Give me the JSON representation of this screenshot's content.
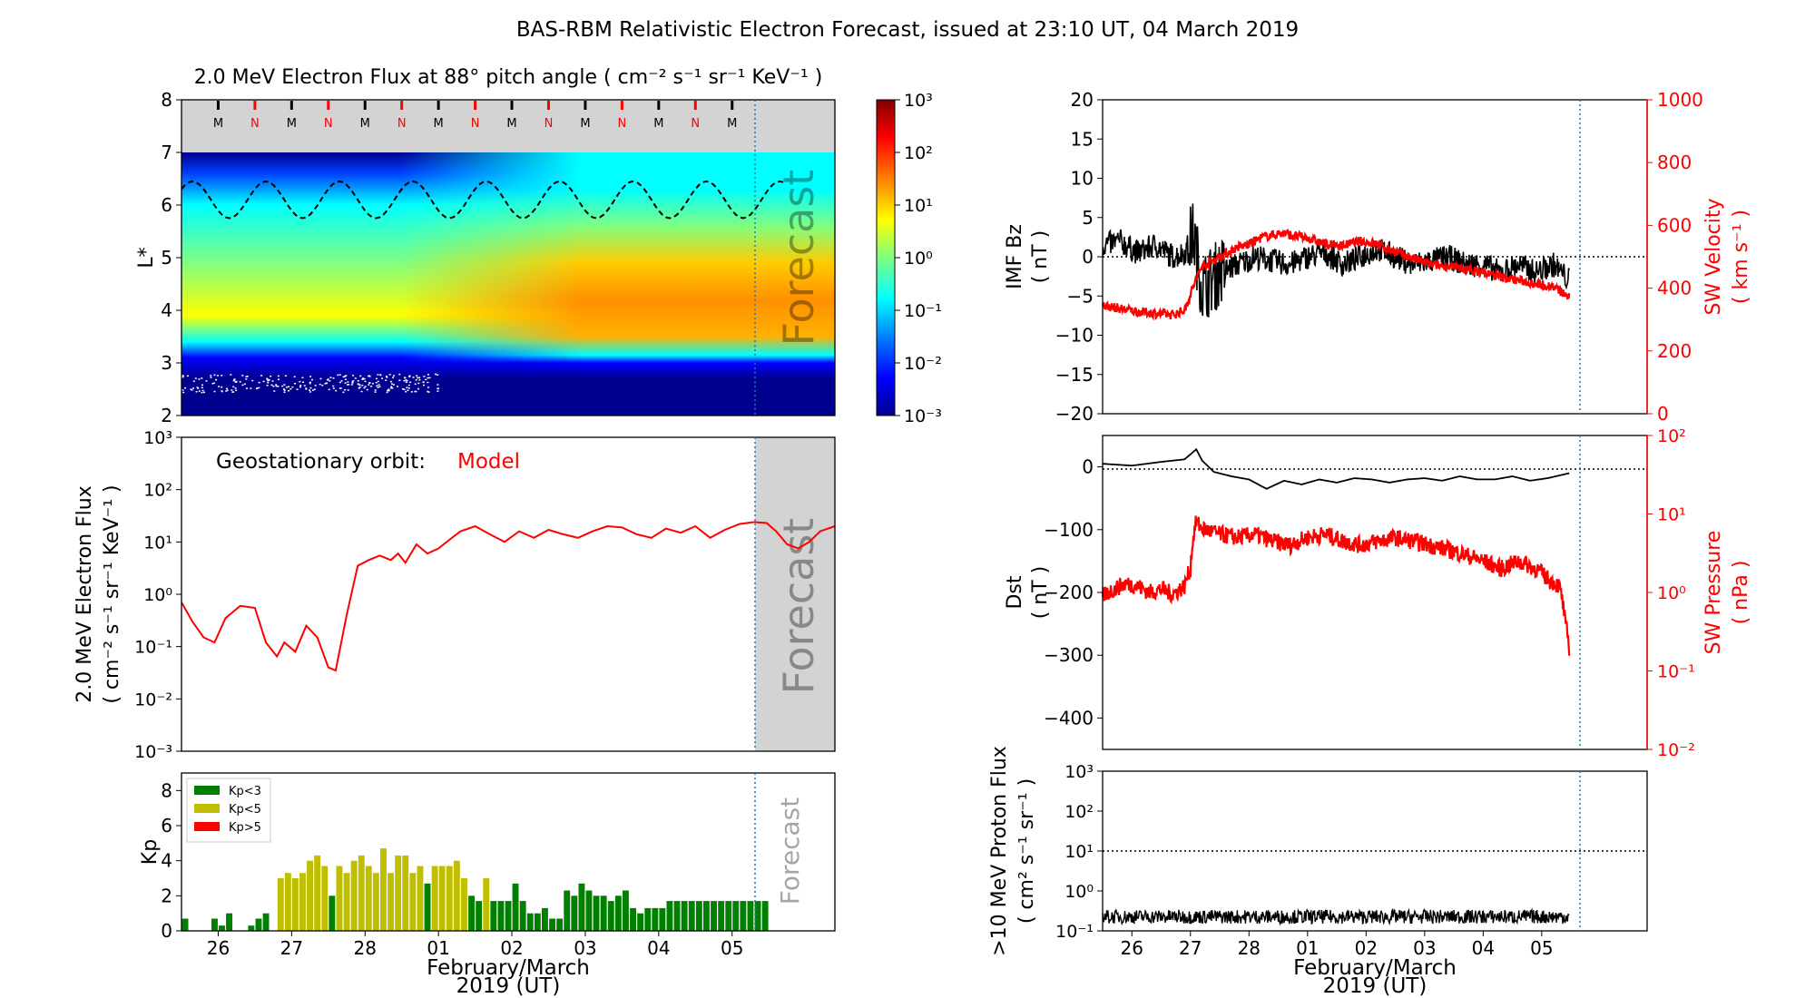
{
  "figure_title": "BAS-RBM Relativistic Electron Forecast, issued at 23:10 UT, 04 March 2019",
  "chart_data": [
    {
      "id": "flux_map",
      "type": "heatmap",
      "title": "2.0 MeV Electron Flux at 88° pitch angle ( cm⁻² s⁻¹ sr⁻¹ KeV⁻¹ )",
      "ylabel": "L*",
      "ylim": [
        2,
        8
      ],
      "y_ticks": [
        2,
        3,
        4,
        5,
        6,
        7,
        8
      ],
      "xlim_days": [
        -3.5,
        5.4
      ],
      "forecast_start_day": 4.47,
      "forecast_label": "Forecast",
      "colorbar": {
        "scale": "log",
        "range": [
          0.001,
          1000
        ],
        "tick_labels": [
          "10⁻³",
          "10⁻²",
          "10⁻¹",
          "10⁰",
          "10¹",
          "10²",
          "10³"
        ]
      },
      "mn_markers": [
        "M",
        "N",
        "M",
        "N",
        "M",
        "N",
        "M",
        "N",
        "M",
        "N",
        "M",
        "N",
        "M",
        "N",
        "M"
      ],
      "mn_colors": {
        "M": "#000000",
        "N": "#ff0000"
      },
      "magnetopause_dashed_L": {
        "mean": 6.1,
        "amplitude": 0.35,
        "period_days": 1
      }
    },
    {
      "id": "geo_flux",
      "type": "line",
      "annotation": "Geostationary orbit:",
      "annotation_series": "Model",
      "ylabel_lines": [
        "2.0 MeV Electron Flux",
        "( cm⁻² s⁻¹ sr⁻¹ KeV⁻¹ )"
      ],
      "yscale": "log",
      "ylim": [
        0.001,
        1000
      ],
      "y_tick_labels": [
        "10⁻³",
        "10⁻²",
        "10⁻¹",
        "10⁰",
        "10¹",
        "10²",
        "10³"
      ],
      "forecast_label": "Forecast",
      "series": [
        {
          "color": "#ff0000",
          "x_days": [
            -3.5,
            -3.35,
            -3.2,
            -3.05,
            -2.9,
            -2.7,
            -2.5,
            -2.35,
            -2.2,
            -2.1,
            -1.95,
            -1.8,
            -1.65,
            -1.5,
            -1.4,
            -1.25,
            -1.1,
            -0.95,
            -0.8,
            -0.65,
            -0.55,
            -0.45,
            -0.3,
            -0.15,
            0.0,
            0.15,
            0.3,
            0.5,
            0.7,
            0.9,
            1.1,
            1.3,
            1.5,
            1.7,
            1.9,
            2.1,
            2.3,
            2.5,
            2.7,
            2.9,
            3.1,
            3.3,
            3.5,
            3.7,
            3.9,
            4.1,
            4.3,
            4.47,
            4.6,
            4.75,
            4.9,
            5.05,
            5.2,
            5.4
          ],
          "values": [
            0.7,
            0.3,
            0.15,
            0.12,
            0.35,
            0.6,
            0.55,
            0.12,
            0.065,
            0.12,
            0.08,
            0.25,
            0.15,
            0.04,
            0.035,
            0.4,
            3.5,
            4.5,
            5.5,
            4.5,
            6.0,
            4.0,
            9.0,
            6.0,
            7.5,
            11.0,
            16.0,
            20.0,
            14.0,
            10.0,
            16.0,
            12.0,
            17.0,
            14.0,
            12.0,
            16.0,
            20.0,
            19.0,
            14.0,
            12.0,
            18.0,
            15.0,
            20.0,
            12.0,
            17.0,
            22.0,
            24.0,
            23.0,
            16.0,
            9.0,
            7.5,
            10.0,
            16.0,
            20.0
          ]
        }
      ]
    },
    {
      "id": "kp",
      "type": "bar",
      "ylabel": "Kp",
      "ylim": [
        0,
        9
      ],
      "y_ticks": [
        0,
        2,
        4,
        6,
        8
      ],
      "forecast_label": "Forecast",
      "legend": [
        {
          "label": "Kp<3",
          "color": "#008000"
        },
        {
          "label": "Kp<5",
          "color": "#bfbf00"
        },
        {
          "label": "Kp>5",
          "color": "#ff0000"
        }
      ],
      "bar_width_days": 0.1,
      "start_day": -3.5,
      "values": [
        0.7,
        0,
        0,
        0,
        0.7,
        0.3,
        1.0,
        0,
        0,
        0.3,
        0.7,
        1.0,
        0,
        3.0,
        3.3,
        3.0,
        3.3,
        4.0,
        4.3,
        3.7,
        2.0,
        3.7,
        3.3,
        4.0,
        4.3,
        3.7,
        3.3,
        4.7,
        3.3,
        4.3,
        4.3,
        3.3,
        3.7,
        2.7,
        3.7,
        3.7,
        3.7,
        4.0,
        3.0,
        2.0,
        1.7,
        3.0,
        1.7,
        1.7,
        1.7,
        2.7,
        1.7,
        1.0,
        1.0,
        1.3,
        0.7,
        0.7,
        2.3,
        2.0,
        2.7,
        2.3,
        2.0,
        2.0,
        1.7,
        2.0,
        2.3,
        1.3,
        1.0,
        1.3,
        1.3,
        1.3,
        1.7,
        1.7,
        1.7,
        1.7,
        1.7,
        1.7,
        1.7,
        1.7,
        1.7,
        1.7,
        1.7,
        1.7,
        1.7,
        1.7
      ]
    },
    {
      "id": "imf_sw",
      "type": "line",
      "ylabel_left": [
        "IMF Bz",
        "( nT )"
      ],
      "ylim_left": [
        -20,
        20
      ],
      "y_ticks_left": [
        -20,
        -15,
        -10,
        -5,
        0,
        5,
        10,
        15,
        20
      ],
      "ylabel_right": [
        "SW Velocity",
        "( km s⁻¹ )"
      ],
      "ylim_right": [
        0,
        1000
      ],
      "y_ticks_right": [
        0,
        200,
        400,
        600,
        800,
        1000
      ],
      "data_end_day": 4.47,
      "series": [
        {
          "color": "#000000",
          "x_days": [
            -3.5,
            -3.2,
            -2.9,
            -2.6,
            -2.3,
            -2.1,
            -1.95,
            -1.8,
            -1.5,
            -1.2,
            -0.9,
            -0.6,
            -0.3,
            0.0,
            0.3,
            0.6,
            0.9,
            1.2,
            1.5,
            1.8,
            2.1,
            2.4,
            2.7,
            3.0,
            3.3,
            3.6,
            3.9,
            4.2,
            4.47
          ],
          "values": [
            1.5,
            2.0,
            0.5,
            1.5,
            0.0,
            0.5,
            3.0,
            -4.0,
            -2.0,
            -1.0,
            0.0,
            -0.5,
            -1.0,
            0.0,
            0.5,
            -1.0,
            0.0,
            1.0,
            0.0,
            -1.0,
            -0.5,
            0.0,
            -1.0,
            -1.0,
            -2.0,
            -1.0,
            -2.0,
            -1.0,
            -3.0
          ]
        },
        {
          "color": "#ff0000",
          "x_days": [
            -3.5,
            -3.2,
            -2.9,
            -2.6,
            -2.3,
            -2.1,
            -2.0,
            -1.9,
            -1.8,
            -1.6,
            -1.4,
            -1.2,
            -1.0,
            -0.8,
            -0.6,
            -0.4,
            -0.2,
            0.0,
            0.3,
            0.6,
            0.9,
            1.2,
            1.5,
            1.8,
            2.1,
            2.4,
            2.7,
            3.0,
            3.3,
            3.6,
            3.9,
            4.2,
            4.47
          ],
          "values": [
            345,
            335,
            325,
            320,
            315,
            330,
            380,
            430,
            470,
            490,
            510,
            530,
            540,
            560,
            570,
            575,
            565,
            560,
            540,
            535,
            550,
            540,
            515,
            495,
            475,
            470,
            460,
            450,
            435,
            425,
            415,
            405,
            370
          ]
        }
      ]
    },
    {
      "id": "dst_pressure",
      "type": "line",
      "ylabel_left": [
        "Dst",
        "( nT )"
      ],
      "ylim_left": [
        -450,
        50
      ],
      "y_ticks_left": [
        0,
        -100,
        -200,
        -300,
        -400
      ],
      "ylabel_right": [
        "SW Pressure",
        "( nPa )"
      ],
      "yscale_right": "log",
      "ylim_right": [
        0.01,
        100
      ],
      "y_tick_labels_right": [
        "10⁻²",
        "10⁻¹",
        "10⁰",
        "10¹",
        "10²"
      ],
      "data_end_day": 4.47,
      "series": [
        {
          "color": "#000000",
          "x_days": [
            -3.5,
            -3.0,
            -2.5,
            -2.1,
            -2.0,
            -1.9,
            -1.8,
            -1.6,
            -1.3,
            -1.0,
            -0.7,
            -0.4,
            -0.1,
            0.2,
            0.5,
            0.8,
            1.1,
            1.4,
            1.7,
            2.0,
            2.3,
            2.6,
            2.9,
            3.2,
            3.5,
            3.8,
            4.1,
            4.47
          ],
          "values": [
            5,
            2,
            8,
            12,
            20,
            28,
            10,
            -8,
            -15,
            -20,
            -35,
            -22,
            -28,
            -20,
            -25,
            -18,
            -20,
            -25,
            -20,
            -18,
            -22,
            -15,
            -20,
            -20,
            -15,
            -22,
            -18,
            -10
          ]
        },
        {
          "color": "#ff0000",
          "x_days": [
            -3.5,
            -3.3,
            -3.1,
            -2.9,
            -2.7,
            -2.5,
            -2.3,
            -2.1,
            -2.0,
            -1.95,
            -1.9,
            -1.8,
            -1.5,
            -1.2,
            -0.9,
            -0.6,
            -0.3,
            0.0,
            0.3,
            0.6,
            0.9,
            1.2,
            1.5,
            1.8,
            2.1,
            2.4,
            2.7,
            3.0,
            3.3,
            3.6,
            3.9,
            4.1,
            4.3,
            4.4,
            4.47
          ],
          "values": [
            0.9,
            1.1,
            1.3,
            1.2,
            1.0,
            1.1,
            0.95,
            1.2,
            2.0,
            5.0,
            8.0,
            6.5,
            5.5,
            5.0,
            5.5,
            4.5,
            4.0,
            5.0,
            5.5,
            4.5,
            4.0,
            4.5,
            5.0,
            4.5,
            4.0,
            3.5,
            3.0,
            2.5,
            2.0,
            2.5,
            2.0,
            1.5,
            1.2,
            0.4,
            0.2
          ]
        }
      ]
    },
    {
      "id": "proton_flux",
      "type": "line",
      "ylabel_lines": [
        ">10 MeV Proton Flux",
        "( cm² s⁻¹ sr⁻¹ )"
      ],
      "yscale": "log",
      "ylim": [
        0.1,
        1000
      ],
      "y_tick_labels": [
        "10⁻¹",
        "10⁰",
        "10¹",
        "10²",
        "10³"
      ],
      "threshold": 10,
      "data_end_day": 4.47,
      "series": [
        {
          "color": "#000000",
          "baseline": 0.2
        }
      ]
    }
  ],
  "x_axis": {
    "tick_labels": [
      "26",
      "27",
      "28",
      "01",
      "02",
      "03",
      "04",
      "05"
    ],
    "tick_days": [
      -3,
      -2,
      -1,
      0,
      1,
      2,
      3,
      4
    ],
    "xlabel_line1": "February/March",
    "xlabel_line2": "2019 (UT)"
  }
}
